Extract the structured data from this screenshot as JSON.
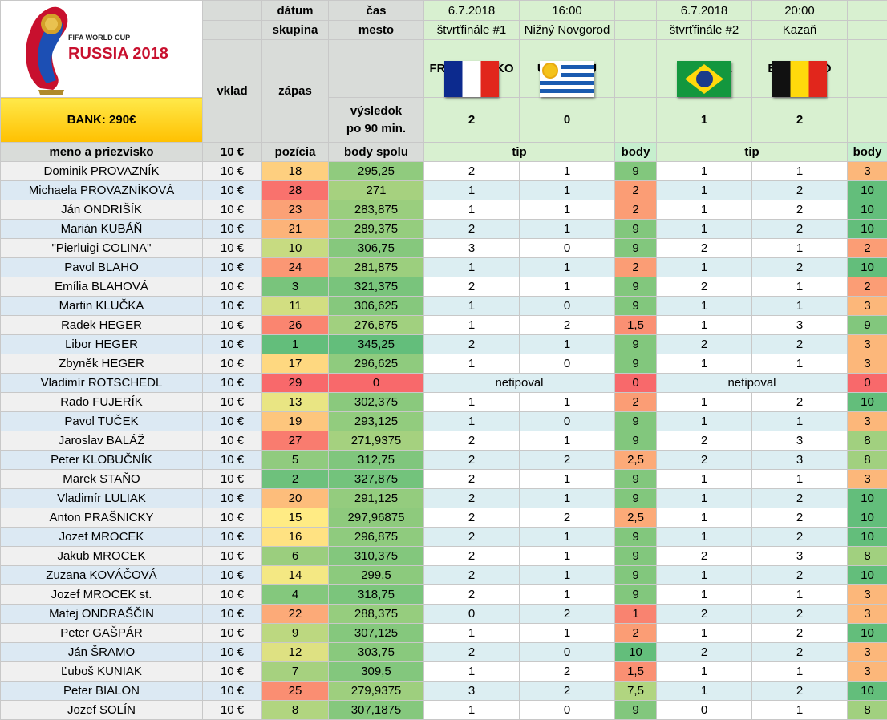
{
  "logo": {
    "line1": "FIFA WORLD CUP",
    "line2": "RUSSIA 2018"
  },
  "bank": "BANK: 290€",
  "header": {
    "vklad": "vklad",
    "zapas": "zápas",
    "datum": "dátum",
    "cas": "čas",
    "skupina": "skupina",
    "mesto": "mesto",
    "vysledok": "výsledok",
    "po90": "po 90 min.",
    "meno": "meno a priezvisko",
    "stake": "10 €",
    "pozicia": "pozícia",
    "body_spolu": "body spolu",
    "tip1": "tip",
    "body1": "body",
    "tip2": "tip",
    "body2": "body"
  },
  "match1": {
    "date": "6.7.2018",
    "time": "16:00",
    "stage": "štvrťfinále #1",
    "city": "Nižný Novgorod",
    "home": "FRANCÚZSKO",
    "away": "URUGUAJ",
    "home_score": "2",
    "away_score": "0",
    "home_flag": "flag-france",
    "away_flag": "flag-uruguay"
  },
  "match2": {
    "date": "6.7.2018",
    "time": "20:00",
    "stage": "štvrťfinále #2",
    "city": "Kazaň",
    "home": "BRAZÍLIA",
    "away": "BELGICKO",
    "home_score": "1",
    "away_score": "2",
    "home_flag": "flag-brazil",
    "away_flag": "flag-belgium"
  },
  "colors": {
    "best": "#63be7b",
    "mid": "#ffeb84",
    "worst": "#f8696b",
    "score_green": "#1e7a1e"
  },
  "players": [
    {
      "name": "Dominik PROVAZNÍK",
      "stake": "10 €",
      "pos": "18",
      "total": "295,25",
      "t1a": "2",
      "t1b": "1",
      "b1": "9",
      "t2a": "1",
      "t2b": "1",
      "b2": "3"
    },
    {
      "name": "Michaela PROVAZNÍKOVÁ",
      "stake": "10 €",
      "pos": "28",
      "total": "271",
      "t1a": "1",
      "t1b": "1",
      "b1": "2",
      "t2a": "1",
      "t2b": "2",
      "b2": "10"
    },
    {
      "name": "Ján ONDRIŠÍK",
      "stake": "10 €",
      "pos": "23",
      "total": "283,875",
      "t1a": "1",
      "t1b": "1",
      "b1": "2",
      "t2a": "1",
      "t2b": "2",
      "b2": "10"
    },
    {
      "name": "Marián KUBÁŇ",
      "stake": "10 €",
      "pos": "21",
      "total": "289,375",
      "t1a": "2",
      "t1b": "1",
      "b1": "9",
      "t2a": "1",
      "t2b": "2",
      "b2": "10"
    },
    {
      "name": "\"Pierluigi COLINA\"",
      "stake": "10 €",
      "pos": "10",
      "total": "306,75",
      "t1a": "3",
      "t1b": "0",
      "b1": "9",
      "t2a": "2",
      "t2b": "1",
      "b2": "2"
    },
    {
      "name": "Pavol BLAHO",
      "stake": "10 €",
      "pos": "24",
      "total": "281,875",
      "t1a": "1",
      "t1b": "1",
      "b1": "2",
      "t2a": "1",
      "t2b": "2",
      "b2": "10"
    },
    {
      "name": "Emília BLAHOVÁ",
      "stake": "10 €",
      "pos": "3",
      "total": "321,375",
      "t1a": "2",
      "t1b": "1",
      "b1": "9",
      "t2a": "2",
      "t2b": "1",
      "b2": "2"
    },
    {
      "name": "Martin KLUČKA",
      "stake": "10 €",
      "pos": "11",
      "total": "306,625",
      "t1a": "1",
      "t1b": "0",
      "b1": "9",
      "t2a": "1",
      "t2b": "1",
      "b2": "3"
    },
    {
      "name": "Radek HEGER",
      "stake": "10 €",
      "pos": "26",
      "total": "276,875",
      "t1a": "1",
      "t1b": "2",
      "b1": "1,5",
      "t2a": "1",
      "t2b": "3",
      "b2": "9"
    },
    {
      "name": "Libor HEGER",
      "stake": "10 €",
      "pos": "1",
      "total": "345,25",
      "t1a": "2",
      "t1b": "1",
      "b1": "9",
      "t2a": "2",
      "t2b": "2",
      "b2": "3"
    },
    {
      "name": "Zbyněk HEGER",
      "stake": "10 €",
      "pos": "17",
      "total": "296,625",
      "t1a": "1",
      "t1b": "0",
      "b1": "9",
      "t2a": "1",
      "t2b": "1",
      "b2": "3"
    },
    {
      "name": "Vladimír ROTSCHEDL",
      "stake": "10 €",
      "pos": "29",
      "total": "0",
      "tip1": "netipoval",
      "b1": "0",
      "tip2": "netipoval",
      "b2": "0"
    },
    {
      "name": "Rado FUJERÍK",
      "stake": "10 €",
      "pos": "13",
      "total": "302,375",
      "t1a": "1",
      "t1b": "1",
      "b1": "2",
      "t2a": "1",
      "t2b": "2",
      "b2": "10"
    },
    {
      "name": "Pavol TUČEK",
      "stake": "10 €",
      "pos": "19",
      "total": "293,125",
      "t1a": "1",
      "t1b": "0",
      "b1": "9",
      "t2a": "1",
      "t2b": "1",
      "b2": "3"
    },
    {
      "name": "Jaroslav BALÁŽ",
      "stake": "10 €",
      "pos": "27",
      "total": "271,9375",
      "t1a": "2",
      "t1b": "1",
      "b1": "9",
      "t2a": "2",
      "t2b": "3",
      "b2": "8"
    },
    {
      "name": "Peter KLOBUČNÍK",
      "stake": "10 €",
      "pos": "5",
      "total": "312,75",
      "t1a": "2",
      "t1b": "2",
      "b1": "2,5",
      "t2a": "2",
      "t2b": "3",
      "b2": "8"
    },
    {
      "name": "Marek STAŇO",
      "stake": "10 €",
      "pos": "2",
      "total": "327,875",
      "t1a": "2",
      "t1b": "1",
      "b1": "9",
      "t2a": "1",
      "t2b": "1",
      "b2": "3"
    },
    {
      "name": "Vladimír LULIAK",
      "stake": "10 €",
      "pos": "20",
      "total": "291,125",
      "t1a": "2",
      "t1b": "1",
      "b1": "9",
      "t2a": "1",
      "t2b": "2",
      "b2": "10"
    },
    {
      "name": "Anton PRAŠNICKY",
      "stake": "10 €",
      "pos": "15",
      "total": "297,96875",
      "t1a": "2",
      "t1b": "2",
      "b1": "2,5",
      "t2a": "1",
      "t2b": "2",
      "b2": "10"
    },
    {
      "name": "Jozef MROCEK",
      "stake": "10 €",
      "pos": "16",
      "total": "296,875",
      "t1a": "2",
      "t1b": "1",
      "b1": "9",
      "t2a": "1",
      "t2b": "2",
      "b2": "10"
    },
    {
      "name": "Jakub MROCEK",
      "stake": "10 €",
      "pos": "6",
      "total": "310,375",
      "t1a": "2",
      "t1b": "1",
      "b1": "9",
      "t2a": "2",
      "t2b": "3",
      "b2": "8"
    },
    {
      "name": "Zuzana KOVÁČOVÁ",
      "stake": "10 €",
      "pos": "14",
      "total": "299,5",
      "t1a": "2",
      "t1b": "1",
      "b1": "9",
      "t2a": "1",
      "t2b": "2",
      "b2": "10"
    },
    {
      "name": "Jozef MROCEK st.",
      "stake": "10 €",
      "pos": "4",
      "total": "318,75",
      "t1a": "2",
      "t1b": "1",
      "b1": "9",
      "t2a": "1",
      "t2b": "1",
      "b2": "3"
    },
    {
      "name": "Matej ONDRAŠČIN",
      "stake": "10 €",
      "pos": "22",
      "total": "288,375",
      "t1a": "0",
      "t1b": "2",
      "b1": "1",
      "t2a": "2",
      "t2b": "2",
      "b2": "3"
    },
    {
      "name": "Peter GAŠPÁR",
      "stake": "10 €",
      "pos": "9",
      "total": "307,125",
      "t1a": "1",
      "t1b": "1",
      "b1": "2",
      "t2a": "1",
      "t2b": "2",
      "b2": "10"
    },
    {
      "name": "Ján ŠRAMO",
      "stake": "10 €",
      "pos": "12",
      "total": "303,75",
      "t1a": "2",
      "t1b": "0",
      "b1": "10",
      "t2a": "2",
      "t2b": "2",
      "b2": "3"
    },
    {
      "name": "Ľuboš KUNIAK",
      "stake": "10 €",
      "pos": "7",
      "total": "309,5",
      "t1a": "1",
      "t1b": "2",
      "b1": "1,5",
      "t2a": "1",
      "t2b": "1",
      "b2": "3"
    },
    {
      "name": "Peter BIALON",
      "stake": "10 €",
      "pos": "25",
      "total": "279,9375",
      "t1a": "3",
      "t1b": "2",
      "b1": "7,5",
      "t2a": "1",
      "t2b": "2",
      "b2": "10"
    },
    {
      "name": "Jozef SOLÍN",
      "stake": "10 €",
      "pos": "8",
      "total": "307,1875",
      "t1a": "1",
      "t1b": "0",
      "b1": "9",
      "t2a": "0",
      "t2b": "1",
      "b2": "8"
    }
  ]
}
